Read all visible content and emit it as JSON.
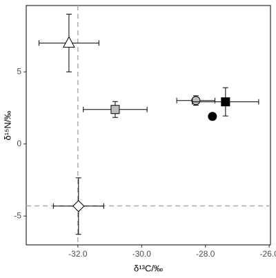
{
  "chart_data": {
    "type": "scatter",
    "x_label": "δ¹³C/‰",
    "y_label": "δ¹⁵N/‰",
    "xlim": [
      -33.62,
      -25.96
    ],
    "ylim": [
      -7.0,
      9.6
    ],
    "xticks": [
      {
        "value": -32,
        "label": "-32.0"
      },
      {
        "value": -30,
        "label": "-30.0"
      },
      {
        "value": -28,
        "label": "-28.0"
      },
      {
        "value": -26,
        "label": "-26.0"
      }
    ],
    "yticks": [
      -5,
      0,
      5
    ],
    "grid": true,
    "reference_lines": {
      "x": -32.0,
      "y": -4.3,
      "color": "#aaaaaa"
    },
    "points": [
      {
        "marker": "triangle",
        "fill": "#ffffff",
        "x": -32.28,
        "y": 7.0,
        "xerr": 0.94,
        "yerr": 2.0
      },
      {
        "marker": "square",
        "fill": "#bdbdbd",
        "x": -30.83,
        "y": 2.39,
        "xerr": 1.0,
        "yerr": 0.55
      },
      {
        "marker": "circle",
        "fill": "#bdbdbd",
        "x": -28.3,
        "y": 3.01,
        "xerr": 0.6,
        "yerr": 0.33
      },
      {
        "marker": "square",
        "fill": "#000000",
        "x": -27.37,
        "y": 2.92,
        "xerr": 1.04,
        "yerr": 0.98
      },
      {
        "marker": "circle",
        "fill": "#000000",
        "x": -27.78,
        "y": 1.91,
        "xerr": null,
        "yerr": null
      },
      {
        "marker": "diamond",
        "fill": "#ffffff",
        "x": -31.98,
        "y": -4.31,
        "xerr": 0.79,
        "yerr": 1.96
      }
    ]
  }
}
